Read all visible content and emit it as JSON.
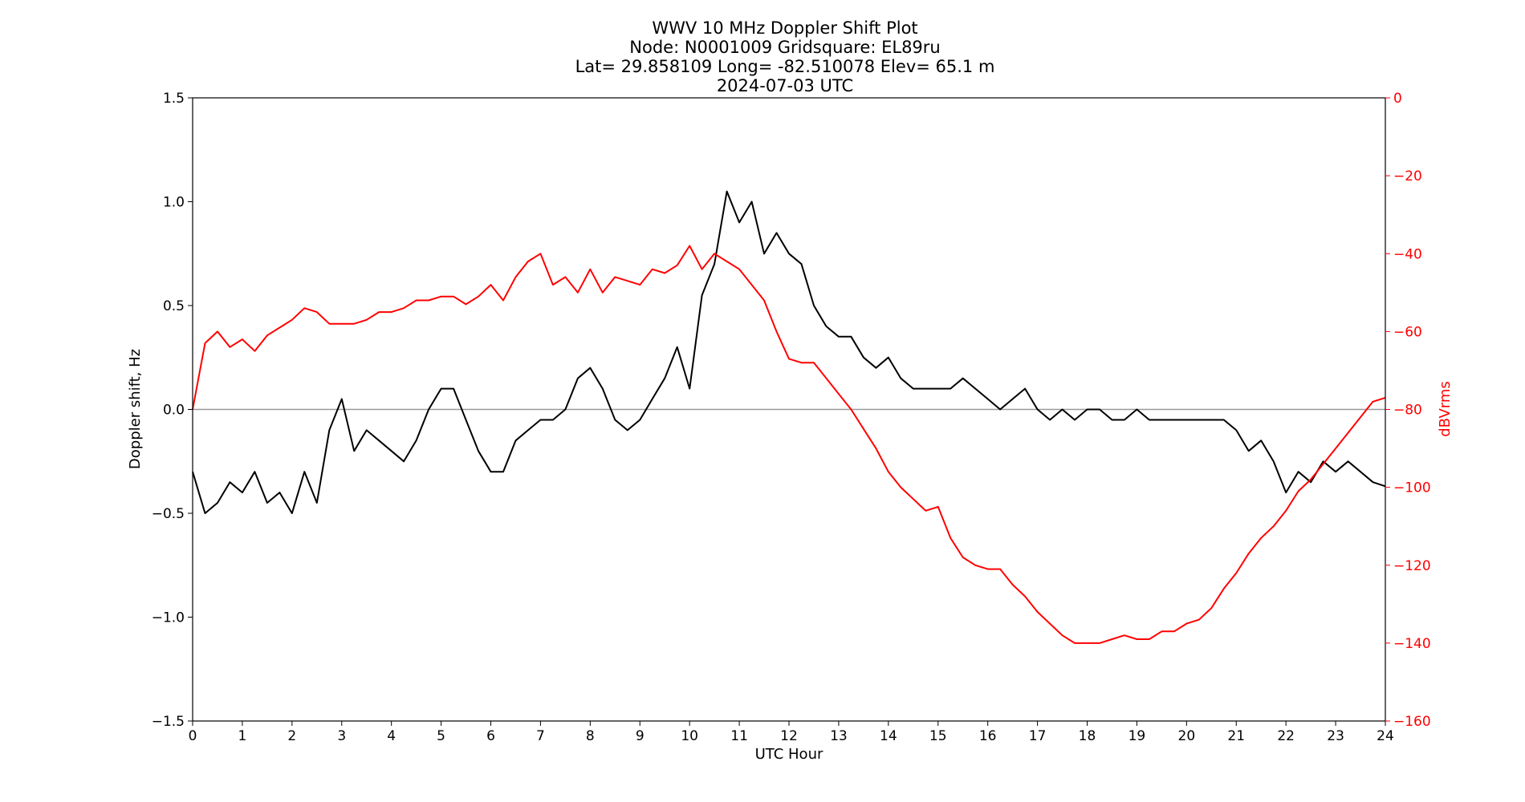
{
  "chart_data": {
    "type": "line",
    "title_lines": [
      "WWV 10 MHz Doppler Shift Plot",
      "Node:  N0001009     Gridsquare:  EL89ru",
      "Lat= 29.858109    Long= -82.510078    Elev= 65.1 m",
      "2024-07-03  UTC"
    ],
    "xlabel": "UTC Hour",
    "ylabel_left": "Doppler shift, Hz",
    "ylabel_right": "dBVrms",
    "xlim": [
      0,
      24
    ],
    "ylim_left": [
      -1.5,
      1.5
    ],
    "ylim_right": [
      -160,
      0
    ],
    "x_ticks": [
      "0",
      "1",
      "2",
      "3",
      "4",
      "5",
      "6",
      "7",
      "8",
      "9",
      "10",
      "11",
      "12",
      "13",
      "14",
      "15",
      "16",
      "17",
      "18",
      "19",
      "20",
      "21",
      "22",
      "23",
      "24"
    ],
    "y_ticks_left": [
      "1.5",
      "1.0",
      "0.5",
      "0.0",
      "−0.5",
      "−1.0",
      "−1.5"
    ],
    "y_ticks_right": [
      "0",
      "−20",
      "−40",
      "−60",
      "−80",
      "−100",
      "−120",
      "−140",
      "−160"
    ],
    "zero_line": 0.0,
    "colors": {
      "doppler": "#000000",
      "power": "#ff0000",
      "zero_line": "#999999"
    },
    "series": [
      {
        "axis": "left",
        "color": "#000000",
        "x": [
          0,
          0.25,
          0.5,
          0.75,
          1,
          1.25,
          1.5,
          1.75,
          2,
          2.25,
          2.5,
          2.75,
          3,
          3.25,
          3.5,
          3.75,
          4,
          4.25,
          4.5,
          4.75,
          5,
          5.25,
          5.5,
          5.75,
          6,
          6.25,
          6.5,
          6.75,
          7,
          7.25,
          7.5,
          7.75,
          8,
          8.25,
          8.5,
          8.75,
          9,
          9.25,
          9.5,
          9.75,
          10,
          10.25,
          10.5,
          10.75,
          11,
          11.25,
          11.5,
          11.75,
          12,
          12.25,
          12.5,
          12.75,
          13,
          13.25,
          13.5,
          13.75,
          14,
          14.25,
          14.5,
          14.75,
          15,
          15.25,
          15.5,
          15.75,
          16,
          16.25,
          16.5,
          16.75,
          17,
          17.25,
          17.5,
          17.75,
          18,
          18.25,
          18.5,
          18.75,
          19,
          19.25,
          19.5,
          19.75,
          20,
          20.25,
          20.5,
          20.75,
          21,
          21.25,
          21.5,
          21.75,
          22,
          22.25,
          22.5,
          22.75,
          23,
          23.25,
          23.5,
          23.75,
          24
        ],
        "values": [
          -0.3,
          -0.5,
          -0.45,
          -0.35,
          -0.4,
          -0.3,
          -0.45,
          -0.4,
          -0.5,
          -0.3,
          -0.45,
          -0.1,
          0.05,
          -0.2,
          -0.1,
          -0.15,
          -0.2,
          -0.25,
          -0.15,
          0.0,
          0.1,
          0.1,
          -0.05,
          -0.2,
          -0.3,
          -0.3,
          -0.15,
          -0.1,
          -0.05,
          -0.05,
          0.0,
          0.15,
          0.2,
          0.1,
          -0.05,
          -0.1,
          -0.05,
          0.05,
          0.15,
          0.3,
          0.1,
          0.55,
          0.7,
          1.05,
          0.9,
          1.0,
          0.75,
          0.85,
          0.75,
          0.7,
          0.5,
          0.4,
          0.35,
          0.35,
          0.25,
          0.2,
          0.25,
          0.15,
          0.1,
          0.1,
          0.1,
          0.1,
          0.15,
          0.1,
          0.05,
          0.0,
          0.05,
          0.1,
          0.0,
          -0.05,
          0.0,
          -0.05,
          0.0,
          0.0,
          -0.05,
          -0.05,
          0.0,
          -0.05,
          -0.05,
          -0.05,
          -0.05,
          -0.05,
          -0.05,
          -0.05,
          -0.1,
          -0.2,
          -0.15,
          -0.25,
          -0.4,
          -0.3,
          -0.35,
          -0.25,
          -0.3,
          -0.25,
          -0.3,
          -0.35,
          -0.37
        ]
      },
      {
        "axis": "right",
        "color": "#ff0000",
        "x": [
          0,
          0.25,
          0.5,
          0.75,
          1,
          1.25,
          1.5,
          1.75,
          2,
          2.25,
          2.5,
          2.75,
          3,
          3.25,
          3.5,
          3.75,
          4,
          4.25,
          4.5,
          4.75,
          5,
          5.25,
          5.5,
          5.75,
          6,
          6.25,
          6.5,
          6.75,
          7,
          7.25,
          7.5,
          7.75,
          8,
          8.25,
          8.5,
          8.75,
          9,
          9.25,
          9.5,
          9.75,
          10,
          10.25,
          10.5,
          10.75,
          11,
          11.25,
          11.5,
          11.75,
          12,
          12.25,
          12.5,
          12.75,
          13,
          13.25,
          13.5,
          13.75,
          14,
          14.25,
          14.5,
          14.75,
          15,
          15.25,
          15.5,
          15.75,
          16,
          16.25,
          16.5,
          16.75,
          17,
          17.25,
          17.5,
          17.75,
          18,
          18.25,
          18.5,
          18.75,
          19,
          19.25,
          19.5,
          19.75,
          20,
          20.25,
          20.5,
          20.75,
          21,
          21.25,
          21.5,
          21.75,
          22,
          22.25,
          22.5,
          22.75,
          23,
          23.25,
          23.5,
          23.75,
          24
        ],
        "values": [
          -80,
          -63,
          -60,
          -64,
          -62,
          -65,
          -61,
          -59,
          -57,
          -54,
          -55,
          -58,
          -58,
          -58,
          -57,
          -55,
          -55,
          -54,
          -52,
          -52,
          -51,
          -51,
          -53,
          -51,
          -48,
          -52,
          -46,
          -42,
          -40,
          -48,
          -46,
          -50,
          -44,
          -50,
          -46,
          -47,
          -48,
          -44,
          -45,
          -43,
          -38,
          -44,
          -40,
          -42,
          -44,
          -48,
          -52,
          -60,
          -67,
          -68,
          -68,
          -72,
          -76,
          -80,
          -85,
          -90,
          -96,
          -100,
          -103,
          -106,
          -105,
          -113,
          -118,
          -120,
          -121,
          -121,
          -125,
          -128,
          -132,
          -135,
          -138,
          -140,
          -140,
          -140,
          -139,
          -138,
          -139,
          -139,
          -137,
          -137,
          -135,
          -134,
          -131,
          -126,
          -122,
          -117,
          -113,
          -110,
          -106,
          -101,
          -98,
          -94,
          -90,
          -86,
          -82,
          -78,
          -77
        ]
      }
    ]
  }
}
